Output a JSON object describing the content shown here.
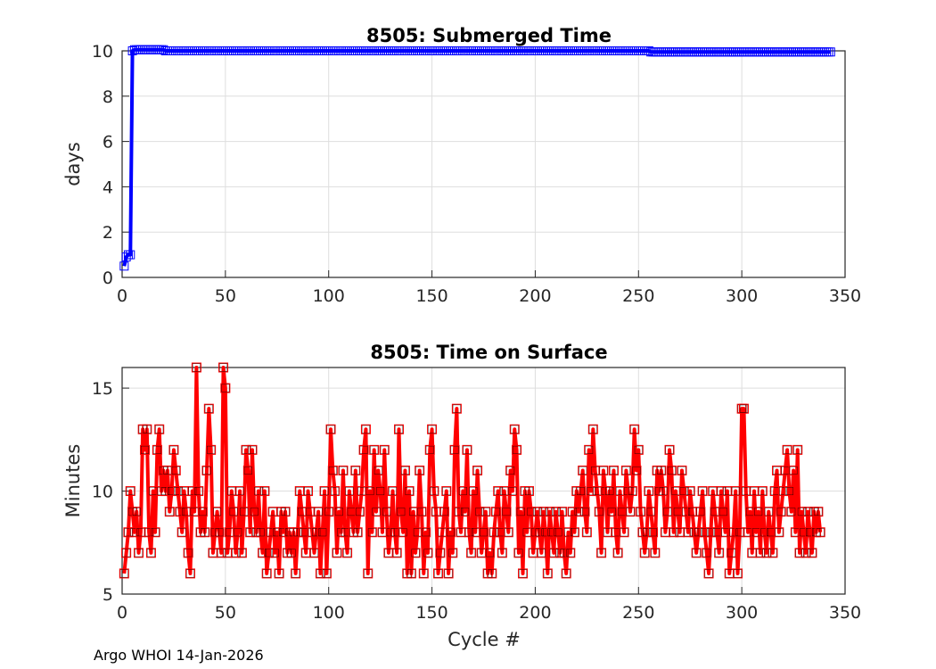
{
  "chart_data": [
    {
      "type": "line",
      "title": "8505: Submerged Time",
      "xlabel": "",
      "ylabel": "days",
      "xlim": [
        0,
        350
      ],
      "ylim": [
        0,
        10
      ],
      "xticks": [
        "0",
        "50",
        "100",
        "150",
        "200",
        "250",
        "300",
        "350"
      ],
      "yticks": [
        "0",
        "2",
        "4",
        "6",
        "8",
        "10"
      ],
      "grid": true,
      "color": "#0000ff",
      "marker": "square",
      "x_start": 1,
      "values": [
        0.5,
        0.9,
        1,
        1,
        10,
        10.05,
        10.05,
        10.05,
        10.05,
        10.05,
        10.05,
        10.05,
        10.05,
        10.05,
        10.05,
        10.05,
        10.05,
        10.05,
        10.05,
        10.05,
        10,
        10,
        10,
        10,
        10,
        10,
        10,
        10,
        10,
        10,
        10,
        10,
        10,
        10,
        10,
        10,
        10,
        10,
        10,
        10,
        10,
        10,
        10,
        10,
        10,
        10,
        10,
        10,
        10,
        10,
        10,
        10,
        10,
        10,
        10,
        10,
        10,
        10,
        10,
        10,
        10,
        10,
        10,
        10,
        10,
        10,
        10,
        10,
        10,
        10,
        10,
        10,
        10,
        10,
        10,
        10,
        10,
        10,
        10,
        10,
        10,
        10,
        10,
        10,
        10,
        10,
        10,
        10,
        10,
        10,
        10,
        10,
        10,
        10,
        10,
        10,
        10,
        10,
        10,
        10,
        10,
        10,
        10,
        10,
        10,
        10,
        10,
        10,
        10,
        10,
        10,
        10,
        10,
        10,
        10,
        10,
        10,
        10,
        10,
        10,
        10,
        10,
        10,
        10,
        10,
        10,
        10,
        10,
        10,
        10,
        10,
        10,
        10,
        10,
        10,
        10,
        10,
        10,
        10,
        10,
        10,
        10,
        10,
        10,
        10,
        10,
        10,
        10,
        10,
        10,
        10,
        10,
        10,
        10,
        10,
        10,
        10,
        10,
        10,
        10,
        10,
        10,
        10,
        10,
        10,
        10,
        10,
        10,
        10,
        10,
        10,
        10,
        10,
        10,
        10,
        10,
        10,
        10,
        10,
        10,
        10,
        10,
        10,
        10,
        10,
        10,
        10,
        10,
        10,
        10,
        10,
        10,
        10,
        10,
        10,
        10,
        10,
        10,
        10,
        10,
        10,
        10,
        10,
        10,
        10,
        10,
        10,
        10,
        10,
        10,
        10,
        10,
        10,
        10,
        10,
        10,
        10,
        10,
        10,
        10,
        10,
        10,
        10,
        10,
        10,
        10,
        10,
        10,
        10,
        10,
        10,
        10,
        10,
        10,
        10,
        10,
        10,
        10,
        10,
        10,
        10,
        10,
        10,
        10,
        10,
        10,
        10,
        10,
        10,
        10,
        10,
        10,
        10,
        10,
        10,
        9.95,
        9.95,
        9.95,
        9.95,
        9.95,
        9.95,
        9.95,
        9.95,
        9.95,
        9.95,
        9.95,
        9.95,
        9.95,
        9.95,
        9.95,
        9.95,
        9.95,
        9.95,
        9.95,
        9.95,
        9.95,
        9.95,
        9.95,
        9.95,
        9.95,
        9.95,
        9.95,
        9.95,
        9.95,
        9.95,
        9.95,
        9.95,
        9.95,
        9.95,
        9.95,
        9.95,
        9.95,
        9.95,
        9.95,
        9.95,
        9.95,
        9.95,
        9.95,
        9.95,
        9.95,
        9.95,
        9.95,
        9.95,
        9.95,
        9.95,
        9.95,
        9.95,
        9.95,
        9.95,
        9.95,
        9.95,
        9.95,
        9.95,
        9.95,
        9.95,
        9.95,
        9.95,
        9.95,
        9.95,
        9.95,
        9.95,
        9.95,
        9.95,
        9.95,
        9.95,
        9.95,
        9.95,
        9.95,
        9.95,
        9.95,
        9.95,
        9.95,
        9.95,
        9.95,
        9.95,
        9.95,
        9.95,
        9.95,
        9.95,
        9.95,
        9.95,
        9.95,
        9.95
      ]
    },
    {
      "type": "line",
      "title": "8505: Time on Surface",
      "xlabel": "Cycle #",
      "ylabel": "Minutes",
      "xlim": [
        0,
        350
      ],
      "ylim": [
        5,
        16
      ],
      "xticks": [
        "0",
        "50",
        "100",
        "150",
        "200",
        "250",
        "300",
        "350"
      ],
      "yticks": [
        "5",
        "10",
        "15"
      ],
      "grid": true,
      "color": "#ff0000",
      "marker": "square",
      "x_start": 1,
      "values": [
        6,
        7,
        8,
        10,
        9,
        8,
        9,
        7,
        8,
        13,
        12,
        13,
        8,
        7,
        10,
        8,
        12,
        13,
        10,
        11,
        10,
        11,
        9,
        10,
        12,
        11,
        10,
        9,
        8,
        10,
        9,
        7,
        6,
        10,
        9,
        16,
        10,
        8,
        9,
        8,
        11,
        14,
        12,
        7,
        8,
        9,
        8,
        7,
        16,
        15,
        7,
        8,
        10,
        9,
        7,
        8,
        10,
        7,
        9,
        12,
        11,
        8,
        12,
        9,
        8,
        10,
        8,
        7,
        10,
        6,
        7,
        8,
        9,
        7,
        8,
        6,
        9,
        8,
        9,
        7,
        8,
        7,
        8,
        6,
        8,
        10,
        9,
        8,
        7,
        10,
        9,
        8,
        7,
        8,
        9,
        6,
        8,
        10,
        6,
        9,
        13,
        11,
        10,
        7,
        9,
        8,
        11,
        8,
        7,
        10,
        9,
        8,
        11,
        8,
        9,
        10,
        12,
        13,
        6,
        10,
        8,
        12,
        9,
        11,
        10,
        8,
        12,
        9,
        7,
        8,
        10,
        8,
        7,
        13,
        9,
        8,
        11,
        6,
        10,
        6,
        9,
        7,
        8,
        11,
        9,
        6,
        8,
        7,
        12,
        13,
        10,
        9,
        6,
        7,
        8,
        9,
        10,
        6,
        8,
        7,
        12,
        14,
        9,
        8,
        10,
        9,
        12,
        8,
        7,
        10,
        8,
        11,
        9,
        7,
        8,
        9,
        6,
        7,
        6,
        8,
        9,
        10,
        8,
        7,
        10,
        9,
        8,
        11,
        10,
        13,
        12,
        7,
        9,
        6,
        10,
        8,
        10,
        9,
        7,
        8,
        9,
        8,
        7,
        9,
        8,
        6,
        9,
        8,
        7,
        9,
        8,
        7,
        9,
        7,
        6,
        8,
        7,
        9,
        8,
        10,
        9,
        10,
        11,
        9,
        8,
        12,
        10,
        13,
        11,
        10,
        9,
        7,
        11,
        10,
        8,
        10,
        9,
        11,
        8,
        7,
        10,
        9,
        8,
        11,
        10,
        9,
        10,
        13,
        11,
        12,
        9,
        8,
        7,
        8,
        10,
        9,
        8,
        7,
        11,
        10,
        11,
        10,
        8,
        9,
        12,
        11,
        8,
        10,
        9,
        8,
        11,
        10,
        9,
        8,
        10,
        9,
        8,
        7,
        8,
        9,
        10,
        8,
        7,
        6,
        8,
        10,
        9,
        8,
        7,
        10,
        9,
        8,
        10,
        6,
        7,
        8,
        10,
        6,
        8,
        14,
        14,
        10,
        8,
        9,
        7,
        10,
        8,
        9,
        7,
        10,
        8,
        7,
        9,
        8,
        7,
        10,
        11,
        8,
        9,
        10,
        11,
        12,
        10,
        9,
        11,
        8,
        12,
        7,
        9,
        8,
        7,
        9,
        8,
        7,
        9,
        8,
        9,
        8
      ]
    }
  ],
  "footer": "Argo WHOI 14-Jan-2026"
}
